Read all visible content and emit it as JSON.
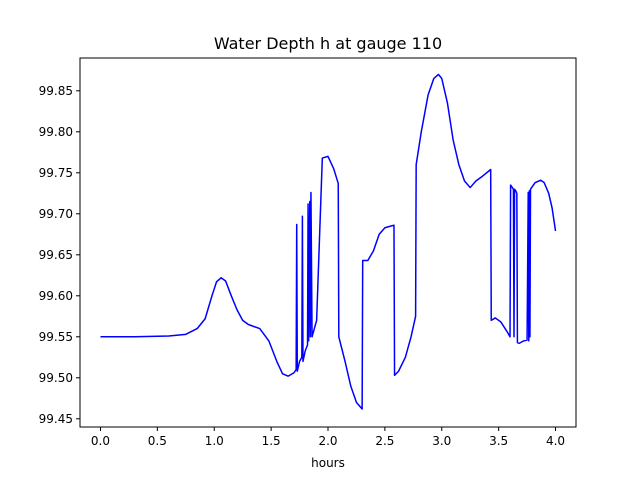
{
  "chart_data": {
    "type": "line",
    "title": "Water Depth h at gauge 110",
    "xlabel": "hours",
    "ylabel": "",
    "xlim": [
      -0.18,
      4.18
    ],
    "ylim": [
      99.44,
      99.89
    ],
    "xticks": [
      0.0,
      0.5,
      1.0,
      1.5,
      2.0,
      2.5,
      3.0,
      3.5,
      4.0
    ],
    "xtick_labels": [
      "0.0",
      "0.5",
      "1.0",
      "1.5",
      "2.0",
      "2.5",
      "3.0",
      "3.5",
      "4.0"
    ],
    "yticks": [
      99.45,
      99.5,
      99.55,
      99.6,
      99.65,
      99.7,
      99.75,
      99.8,
      99.85
    ],
    "ytick_labels": [
      "99.45",
      "99.50",
      "99.55",
      "99.60",
      "99.65",
      "99.70",
      "99.75",
      "99.80",
      "99.85"
    ],
    "grid": false,
    "series": [
      {
        "color": "#0000ff",
        "x": [
          0.0,
          0.3,
          0.6,
          0.75,
          0.85,
          0.92,
          0.98,
          1.02,
          1.06,
          1.1,
          1.15,
          1.2,
          1.25,
          1.3,
          1.4,
          1.48,
          1.55,
          1.6,
          1.65,
          1.7,
          1.72,
          1.725,
          1.73,
          1.75,
          1.77,
          1.775,
          1.78,
          1.8,
          1.82,
          1.825,
          1.83,
          1.84,
          1.845,
          1.85,
          1.86,
          1.88,
          1.9,
          1.95,
          2.0,
          2.05,
          2.09,
          2.095,
          2.15,
          2.2,
          2.25,
          2.3,
          2.305,
          2.35,
          2.4,
          2.45,
          2.5,
          2.55,
          2.58,
          2.585,
          2.62,
          2.68,
          2.73,
          2.77,
          2.775,
          2.82,
          2.88,
          2.93,
          2.97,
          3.0,
          3.05,
          3.1,
          3.15,
          3.2,
          3.25,
          3.3,
          3.35,
          3.43,
          3.435,
          3.47,
          3.52,
          3.58,
          3.6,
          3.605,
          3.63,
          3.635,
          3.64,
          3.65,
          3.66,
          3.665,
          3.68,
          3.72,
          3.75,
          3.76,
          3.765,
          3.77,
          3.775,
          3.78,
          3.82,
          3.87,
          3.9,
          3.94,
          3.97,
          4.0
        ],
        "y": [
          99.55,
          99.55,
          99.551,
          99.553,
          99.56,
          99.572,
          99.6,
          99.617,
          99.622,
          99.618,
          99.6,
          99.583,
          99.57,
          99.565,
          99.56,
          99.545,
          99.52,
          99.505,
          99.502,
          99.506,
          99.51,
          99.687,
          99.508,
          99.52,
          99.525,
          99.697,
          99.52,
          99.533,
          99.54,
          99.712,
          99.545,
          99.715,
          99.55,
          99.726,
          99.55,
          99.56,
          99.57,
          99.768,
          99.77,
          99.755,
          99.737,
          99.55,
          99.52,
          99.49,
          99.47,
          99.462,
          99.643,
          99.643,
          99.655,
          99.675,
          99.683,
          99.685,
          99.686,
          99.503,
          99.508,
          99.525,
          99.55,
          99.575,
          99.76,
          99.8,
          99.845,
          99.865,
          99.87,
          99.865,
          99.835,
          99.79,
          99.76,
          99.74,
          99.732,
          99.74,
          99.745,
          99.754,
          99.57,
          99.573,
          99.568,
          99.555,
          99.55,
          99.735,
          99.73,
          99.55,
          99.73,
          99.728,
          99.725,
          99.543,
          99.542,
          99.545,
          99.546,
          99.726,
          99.545,
          99.728,
          99.55,
          99.73,
          99.738,
          99.741,
          99.738,
          99.725,
          99.707,
          99.679
        ]
      }
    ]
  }
}
